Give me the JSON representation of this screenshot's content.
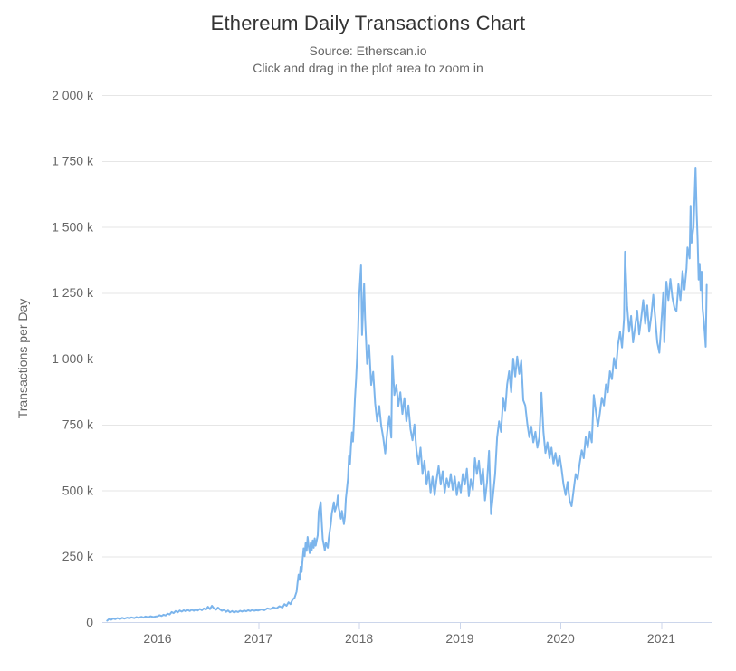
{
  "header": {
    "title": "Ethereum Daily Transactions Chart",
    "subtitle": "Source: Etherscan.io",
    "hint": "Click and drag in the plot area to zoom in"
  },
  "chart_data": {
    "type": "line",
    "title": "Ethereum Daily Transactions Chart",
    "subtitle": "Source: Etherscan.io",
    "annotation": "Click and drag in the plot area to zoom in",
    "xlabel": "",
    "ylabel": "Transactions per Day",
    "legend": "off",
    "grid": "horizontal",
    "units": "thousands of transactions per day",
    "line_color": "#7cb5ec",
    "grid_color": "#e6e6e6",
    "axis_line_color": "#ccd6eb",
    "label_color": "#666666",
    "title_color": "#333333",
    "ylim": [
      0,
      2000
    ],
    "x_range_years": [
      2015.5,
      2021.45
    ],
    "ytick_values": [
      0,
      250,
      500,
      750,
      1000,
      1250,
      1500,
      1750,
      2000
    ],
    "ytick_labels": [
      "0",
      "250 k",
      "500 k",
      "750 k",
      "1 000 k",
      "1 250 k",
      "1 500 k",
      "1 750 k",
      "2 000 k"
    ],
    "xtick_labels": [
      "2016",
      "2017",
      "2018",
      "2019",
      "2020",
      "2021"
    ],
    "xtick_years": [
      2016,
      2017,
      2018,
      2019,
      2020,
      2021
    ],
    "points": [
      [
        2015.5,
        5
      ],
      [
        2015.52,
        12
      ],
      [
        2015.54,
        9
      ],
      [
        2015.56,
        14
      ],
      [
        2015.58,
        11
      ],
      [
        2015.6,
        15
      ],
      [
        2015.63,
        12
      ],
      [
        2015.65,
        16
      ],
      [
        2015.67,
        13
      ],
      [
        2015.7,
        17
      ],
      [
        2015.72,
        14
      ],
      [
        2015.74,
        18
      ],
      [
        2015.77,
        15
      ],
      [
        2015.79,
        19
      ],
      [
        2015.81,
        16
      ],
      [
        2015.84,
        20
      ],
      [
        2015.86,
        17
      ],
      [
        2015.88,
        21
      ],
      [
        2015.91,
        18
      ],
      [
        2015.93,
        22
      ],
      [
        2015.96,
        19
      ],
      [
        2015.98,
        21
      ],
      [
        2016.0,
        22
      ],
      [
        2016.02,
        26
      ],
      [
        2016.04,
        23
      ],
      [
        2016.06,
        28
      ],
      [
        2016.08,
        25
      ],
      [
        2016.1,
        32
      ],
      [
        2016.12,
        29
      ],
      [
        2016.14,
        38
      ],
      [
        2016.16,
        34
      ],
      [
        2016.18,
        42
      ],
      [
        2016.2,
        37
      ],
      [
        2016.22,
        44
      ],
      [
        2016.24,
        40
      ],
      [
        2016.26,
        45
      ],
      [
        2016.28,
        41
      ],
      [
        2016.3,
        46
      ],
      [
        2016.32,
        42
      ],
      [
        2016.34,
        47
      ],
      [
        2016.36,
        43
      ],
      [
        2016.38,
        48
      ],
      [
        2016.4,
        44
      ],
      [
        2016.42,
        50
      ],
      [
        2016.44,
        45
      ],
      [
        2016.46,
        52
      ],
      [
        2016.48,
        47
      ],
      [
        2016.5,
        58
      ],
      [
        2016.52,
        49
      ],
      [
        2016.54,
        62
      ],
      [
        2016.56,
        52
      ],
      [
        2016.58,
        47
      ],
      [
        2016.6,
        55
      ],
      [
        2016.62,
        48
      ],
      [
        2016.64,
        43
      ],
      [
        2016.66,
        47
      ],
      [
        2016.68,
        39
      ],
      [
        2016.7,
        44
      ],
      [
        2016.72,
        37
      ],
      [
        2016.74,
        42
      ],
      [
        2016.76,
        36
      ],
      [
        2016.78,
        41
      ],
      [
        2016.8,
        38
      ],
      [
        2016.82,
        43
      ],
      [
        2016.84,
        40
      ],
      [
        2016.86,
        44
      ],
      [
        2016.88,
        41
      ],
      [
        2016.9,
        45
      ],
      [
        2016.92,
        42
      ],
      [
        2016.94,
        46
      ],
      [
        2016.96,
        43
      ],
      [
        2016.98,
        45
      ],
      [
        2017.0,
        44
      ],
      [
        2017.03,
        48
      ],
      [
        2017.06,
        45
      ],
      [
        2017.09,
        52
      ],
      [
        2017.12,
        49
      ],
      [
        2017.15,
        56
      ],
      [
        2017.18,
        52
      ],
      [
        2017.21,
        60
      ],
      [
        2017.24,
        55
      ],
      [
        2017.26,
        68
      ],
      [
        2017.28,
        62
      ],
      [
        2017.3,
        75
      ],
      [
        2017.32,
        68
      ],
      [
        2017.34,
        85
      ],
      [
        2017.36,
        92
      ],
      [
        2017.38,
        115
      ],
      [
        2017.39,
        150
      ],
      [
        2017.4,
        180
      ],
      [
        2017.41,
        160
      ],
      [
        2017.42,
        210
      ],
      [
        2017.43,
        190
      ],
      [
        2017.44,
        240
      ],
      [
        2017.45,
        280
      ],
      [
        2017.46,
        250
      ],
      [
        2017.47,
        300
      ],
      [
        2017.48,
        270
      ],
      [
        2017.49,
        323
      ],
      [
        2017.5,
        290
      ],
      [
        2017.51,
        262
      ],
      [
        2017.52,
        300
      ],
      [
        2017.53,
        272
      ],
      [
        2017.54,
        310
      ],
      [
        2017.55,
        282
      ],
      [
        2017.56,
        318
      ],
      [
        2017.57,
        290
      ],
      [
        2017.59,
        330
      ],
      [
        2017.6,
        420
      ],
      [
        2017.62,
        455
      ],
      [
        2017.63,
        380
      ],
      [
        2017.64,
        315
      ],
      [
        2017.66,
        272
      ],
      [
        2017.67,
        302
      ],
      [
        2017.69,
        282
      ],
      [
        2017.7,
        320
      ],
      [
        2017.72,
        372
      ],
      [
        2017.73,
        412
      ],
      [
        2017.75,
        455
      ],
      [
        2017.76,
        420
      ],
      [
        2017.78,
        445
      ],
      [
        2017.79,
        480
      ],
      [
        2017.8,
        432
      ],
      [
        2017.82,
        392
      ],
      [
        2017.83,
        422
      ],
      [
        2017.85,
        372
      ],
      [
        2017.86,
        400
      ],
      [
        2017.87,
        470
      ],
      [
        2017.88,
        505
      ],
      [
        2017.89,
        545
      ],
      [
        2017.9,
        630
      ],
      [
        2017.91,
        600
      ],
      [
        2017.92,
        668
      ],
      [
        2017.93,
        720
      ],
      [
        2017.94,
        685
      ],
      [
        2017.95,
        762
      ],
      [
        2017.96,
        850
      ],
      [
        2017.97,
        920
      ],
      [
        2017.98,
        1000
      ],
      [
        2017.99,
        1100
      ],
      [
        2018.0,
        1230
      ],
      [
        2018.02,
        1354
      ],
      [
        2018.03,
        1090
      ],
      [
        2018.05,
        1285
      ],
      [
        2018.06,
        1150
      ],
      [
        2018.08,
        980
      ],
      [
        2018.1,
        1050
      ],
      [
        2018.12,
        900
      ],
      [
        2018.14,
        950
      ],
      [
        2018.16,
        830
      ],
      [
        2018.18,
        762
      ],
      [
        2018.2,
        820
      ],
      [
        2018.22,
        745
      ],
      [
        2018.24,
        700
      ],
      [
        2018.26,
        640
      ],
      [
        2018.28,
        722
      ],
      [
        2018.3,
        782
      ],
      [
        2018.32,
        700
      ],
      [
        2018.33,
        1010
      ],
      [
        2018.35,
        862
      ],
      [
        2018.37,
        900
      ],
      [
        2018.39,
        820
      ],
      [
        2018.41,
        872
      ],
      [
        2018.43,
        790
      ],
      [
        2018.45,
        850
      ],
      [
        2018.47,
        762
      ],
      [
        2018.49,
        822
      ],
      [
        2018.51,
        732
      ],
      [
        2018.53,
        690
      ],
      [
        2018.55,
        750
      ],
      [
        2018.57,
        652
      ],
      [
        2018.59,
        600
      ],
      [
        2018.61,
        662
      ],
      [
        2018.63,
        562
      ],
      [
        2018.65,
        612
      ],
      [
        2018.67,
        522
      ],
      [
        2018.69,
        572
      ],
      [
        2018.71,
        492
      ],
      [
        2018.73,
        552
      ],
      [
        2018.75,
        482
      ],
      [
        2018.77,
        542
      ],
      [
        2018.79,
        592
      ],
      [
        2018.81,
        522
      ],
      [
        2018.83,
        572
      ],
      [
        2018.85,
        492
      ],
      [
        2018.87,
        545
      ],
      [
        2018.89,
        512
      ],
      [
        2018.91,
        562
      ],
      [
        2018.93,
        502
      ],
      [
        2018.95,
        552
      ],
      [
        2018.97,
        482
      ],
      [
        2018.99,
        532
      ],
      [
        2019.01,
        492
      ],
      [
        2019.03,
        562
      ],
      [
        2019.05,
        522
      ],
      [
        2019.07,
        582
      ],
      [
        2019.09,
        478
      ],
      [
        2019.11,
        542
      ],
      [
        2019.13,
        502
      ],
      [
        2019.15,
        622
      ],
      [
        2019.17,
        562
      ],
      [
        2019.19,
        612
      ],
      [
        2019.21,
        522
      ],
      [
        2019.23,
        582
      ],
      [
        2019.25,
        462
      ],
      [
        2019.27,
        532
      ],
      [
        2019.29,
        650
      ],
      [
        2019.31,
        410
      ],
      [
        2019.33,
        482
      ],
      [
        2019.35,
        562
      ],
      [
        2019.37,
        700
      ],
      [
        2019.39,
        762
      ],
      [
        2019.41,
        722
      ],
      [
        2019.43,
        852
      ],
      [
        2019.45,
        802
      ],
      [
        2019.47,
        902
      ],
      [
        2019.49,
        952
      ],
      [
        2019.51,
        872
      ],
      [
        2019.53,
        1000
      ],
      [
        2019.55,
        932
      ],
      [
        2019.57,
        1008
      ],
      [
        2019.59,
        942
      ],
      [
        2019.61,
        992
      ],
      [
        2019.63,
        842
      ],
      [
        2019.65,
        822
      ],
      [
        2019.67,
        752
      ],
      [
        2019.69,
        702
      ],
      [
        2019.71,
        742
      ],
      [
        2019.73,
        682
      ],
      [
        2019.75,
        722
      ],
      [
        2019.77,
        662
      ],
      [
        2019.79,
        702
      ],
      [
        2019.81,
        870
      ],
      [
        2019.83,
        722
      ],
      [
        2019.85,
        642
      ],
      [
        2019.87,
        682
      ],
      [
        2019.89,
        622
      ],
      [
        2019.91,
        662
      ],
      [
        2019.93,
        602
      ],
      [
        2019.95,
        642
      ],
      [
        2019.97,
        592
      ],
      [
        2019.99,
        632
      ],
      [
        2020.01,
        582
      ],
      [
        2020.03,
        522
      ],
      [
        2020.05,
        482
      ],
      [
        2020.07,
        532
      ],
      [
        2020.09,
        462
      ],
      [
        2020.11,
        440
      ],
      [
        2020.13,
        502
      ],
      [
        2020.15,
        562
      ],
      [
        2020.17,
        542
      ],
      [
        2020.19,
        602
      ],
      [
        2020.21,
        652
      ],
      [
        2020.23,
        622
      ],
      [
        2020.25,
        702
      ],
      [
        2020.27,
        662
      ],
      [
        2020.29,
        722
      ],
      [
        2020.31,
        682
      ],
      [
        2020.33,
        862
      ],
      [
        2020.35,
        800
      ],
      [
        2020.37,
        742
      ],
      [
        2020.39,
        792
      ],
      [
        2020.41,
        852
      ],
      [
        2020.43,
        822
      ],
      [
        2020.45,
        902
      ],
      [
        2020.47,
        872
      ],
      [
        2020.49,
        952
      ],
      [
        2020.51,
        922
      ],
      [
        2020.53,
        1002
      ],
      [
        2020.55,
        962
      ],
      [
        2020.57,
        1052
      ],
      [
        2020.59,
        1102
      ],
      [
        2020.61,
        1042
      ],
      [
        2020.63,
        1152
      ],
      [
        2020.64,
        1406
      ],
      [
        2020.66,
        1202
      ],
      [
        2020.68,
        1102
      ],
      [
        2020.7,
        1162
      ],
      [
        2020.72,
        1062
      ],
      [
        2020.74,
        1122
      ],
      [
        2020.76,
        1182
      ],
      [
        2020.78,
        1092
      ],
      [
        2020.8,
        1152
      ],
      [
        2020.82,
        1222
      ],
      [
        2020.84,
        1132
      ],
      [
        2020.86,
        1202
      ],
      [
        2020.88,
        1102
      ],
      [
        2020.9,
        1162
      ],
      [
        2020.92,
        1242
      ],
      [
        2020.94,
        1152
      ],
      [
        2020.96,
        1062
      ],
      [
        2020.98,
        1022
      ],
      [
        2021.0,
        1132
      ],
      [
        2021.02,
        1252
      ],
      [
        2021.03,
        1062
      ],
      [
        2021.05,
        1292
      ],
      [
        2021.07,
        1222
      ],
      [
        2021.09,
        1302
      ],
      [
        2021.11,
        1232
      ],
      [
        2021.13,
        1192
      ],
      [
        2021.15,
        1180
      ],
      [
        2021.17,
        1282
      ],
      [
        2021.19,
        1222
      ],
      [
        2021.21,
        1332
      ],
      [
        2021.23,
        1262
      ],
      [
        2021.25,
        1342
      ],
      [
        2021.26,
        1422
      ],
      [
        2021.28,
        1380
      ],
      [
        2021.29,
        1580
      ],
      [
        2021.3,
        1440
      ],
      [
        2021.32,
        1500
      ],
      [
        2021.34,
        1725
      ],
      [
        2021.35,
        1560
      ],
      [
        2021.36,
        1450
      ],
      [
        2021.37,
        1300
      ],
      [
        2021.38,
        1360
      ],
      [
        2021.39,
        1260
      ],
      [
        2021.4,
        1330
      ],
      [
        2021.41,
        1190
      ],
      [
        2021.42,
        1150
      ],
      [
        2021.43,
        1100
      ],
      [
        2021.44,
        1045
      ],
      [
        2021.45,
        1280
      ]
    ]
  }
}
